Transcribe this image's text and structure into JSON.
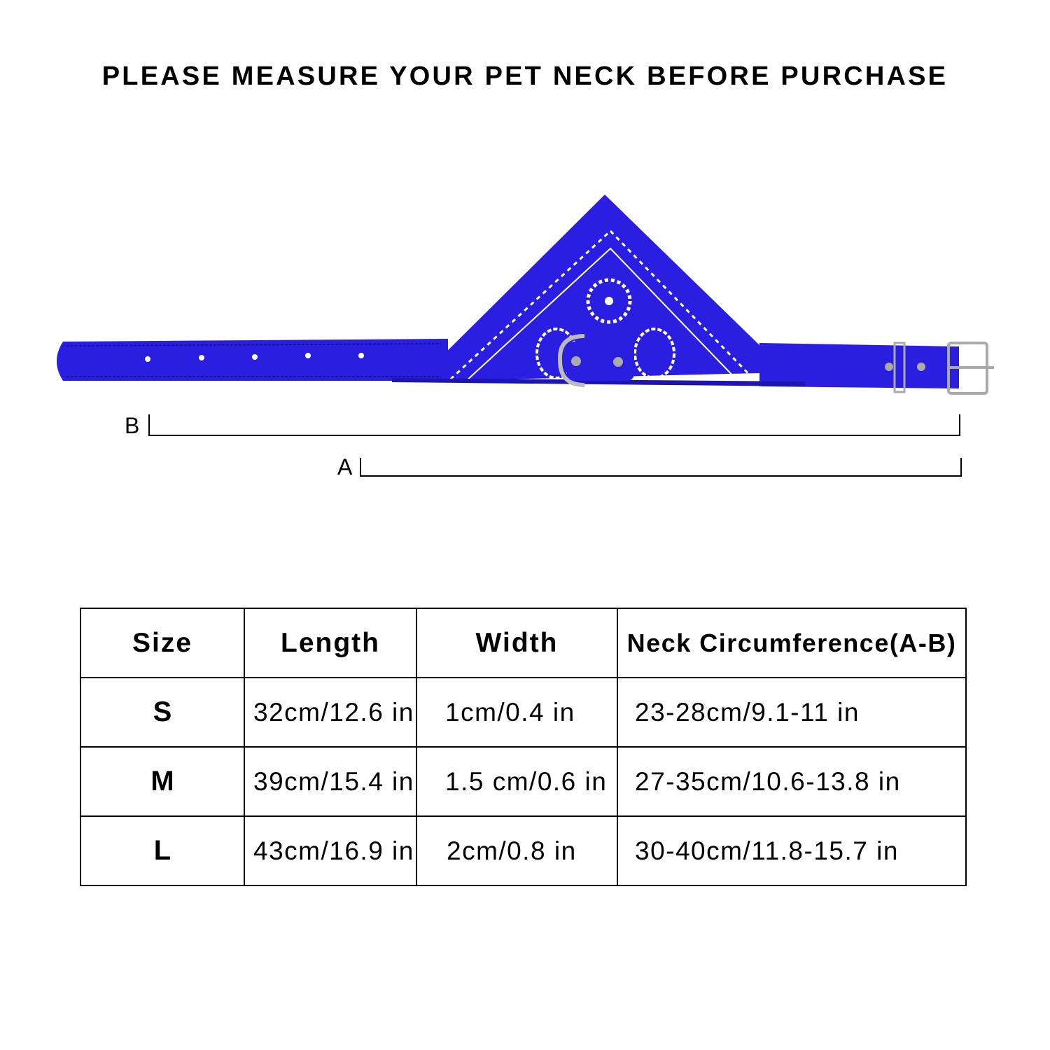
{
  "title": "PLEASE MEASURE YOUR PET NECK BEFORE PURCHASE",
  "product_color": "#2a1fe0",
  "measure_labels": {
    "b": "B",
    "a": "A"
  },
  "table": {
    "headers": [
      "Size",
      "Length",
      "Width",
      "Neck Circumference(A-B)"
    ],
    "rows": [
      [
        "S",
        "32cm/12.6 in",
        "1cm/0.4 in",
        "23-28cm/9.1-11 in"
      ],
      [
        "M",
        "39cm/15.4 in",
        "1.5 cm/0.6 in",
        "27-35cm/10.6-13.8 in"
      ],
      [
        "L",
        "43cm/16.9 in",
        "2cm/0.8 in",
        "30-40cm/11.8-15.7 in"
      ]
    ]
  }
}
